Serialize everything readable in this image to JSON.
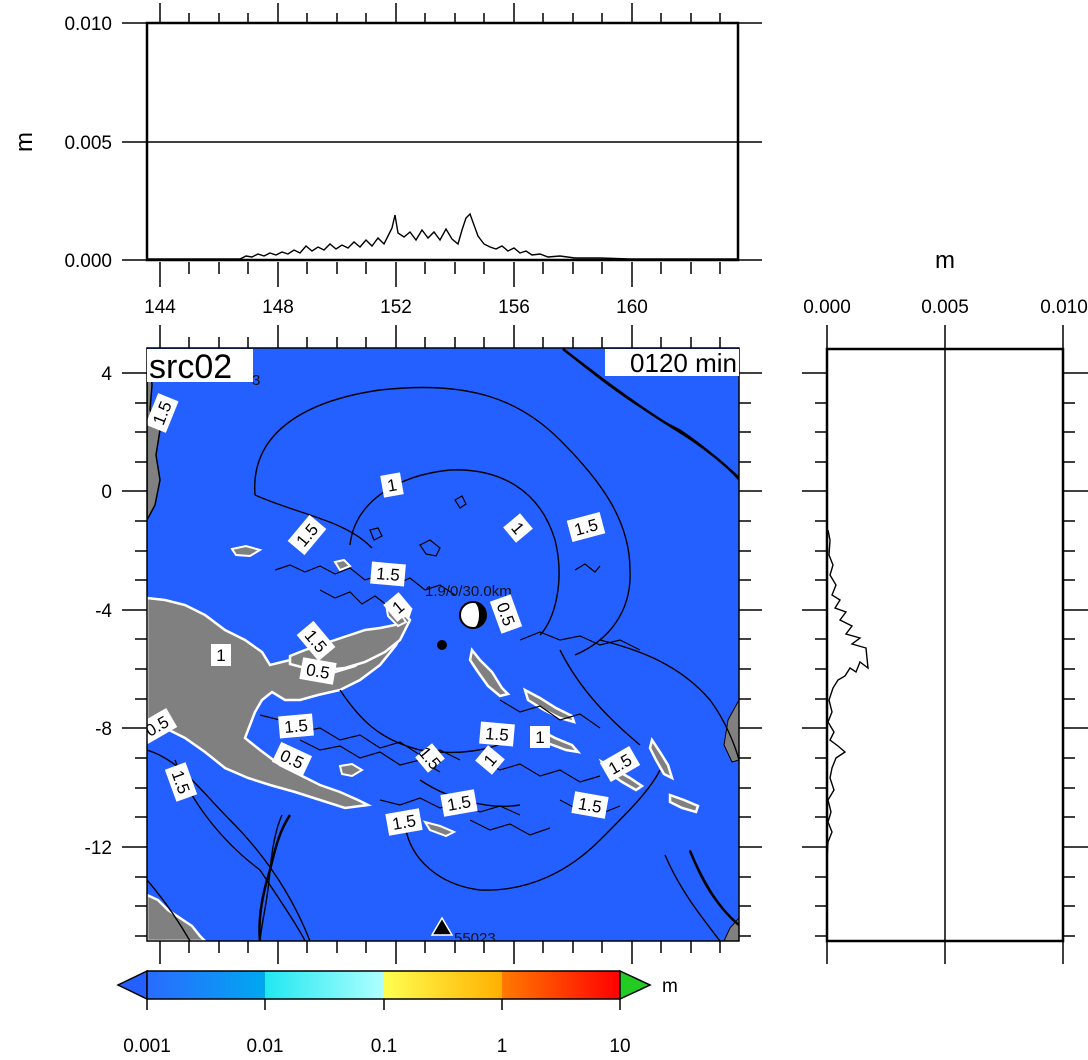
{
  "map": {
    "source_label": "src02",
    "time_label": "0120 min",
    "lat_ticks": [
      "4",
      "0",
      "-4",
      "-8",
      "-12"
    ],
    "contour_labels": [
      "1.5",
      "1",
      "1.5",
      "1",
      "1.5",
      "1.5",
      "1",
      "0.5",
      "1.5",
      "1",
      "0.5",
      "1.5",
      "0.5",
      "1.5",
      "1.5",
      "1",
      "1.5",
      "1",
      "1.5",
      "0.5",
      "1.5",
      "1.5",
      "1.5",
      "1.5"
    ],
    "epicenter_label": "1.9/0/30.0km",
    "station_label": "55023",
    "corner_fragment": "3",
    "colors": {
      "sea": "#2460ff",
      "land": "#808080"
    }
  },
  "top_profile": {
    "y_unit": "m",
    "y_ticks": [
      "0.010",
      "0.005",
      "0.000"
    ],
    "x_ticks": [
      "144",
      "148",
      "152",
      "156",
      "160"
    ]
  },
  "right_profile": {
    "x_unit": "m",
    "x_ticks": [
      "0.000",
      "0.005",
      "0.010"
    ]
  },
  "colorbar": {
    "unit": "m",
    "labels": [
      "0.001",
      "0.01",
      "0.1",
      "1",
      "10"
    ],
    "colors": [
      "#2a6bff",
      "#00c8e8",
      "#40ffff",
      "#ffff40",
      "#ff8800",
      "#ff1010"
    ],
    "under_color": "#2460ff",
    "over_color": "#22cc22"
  }
}
